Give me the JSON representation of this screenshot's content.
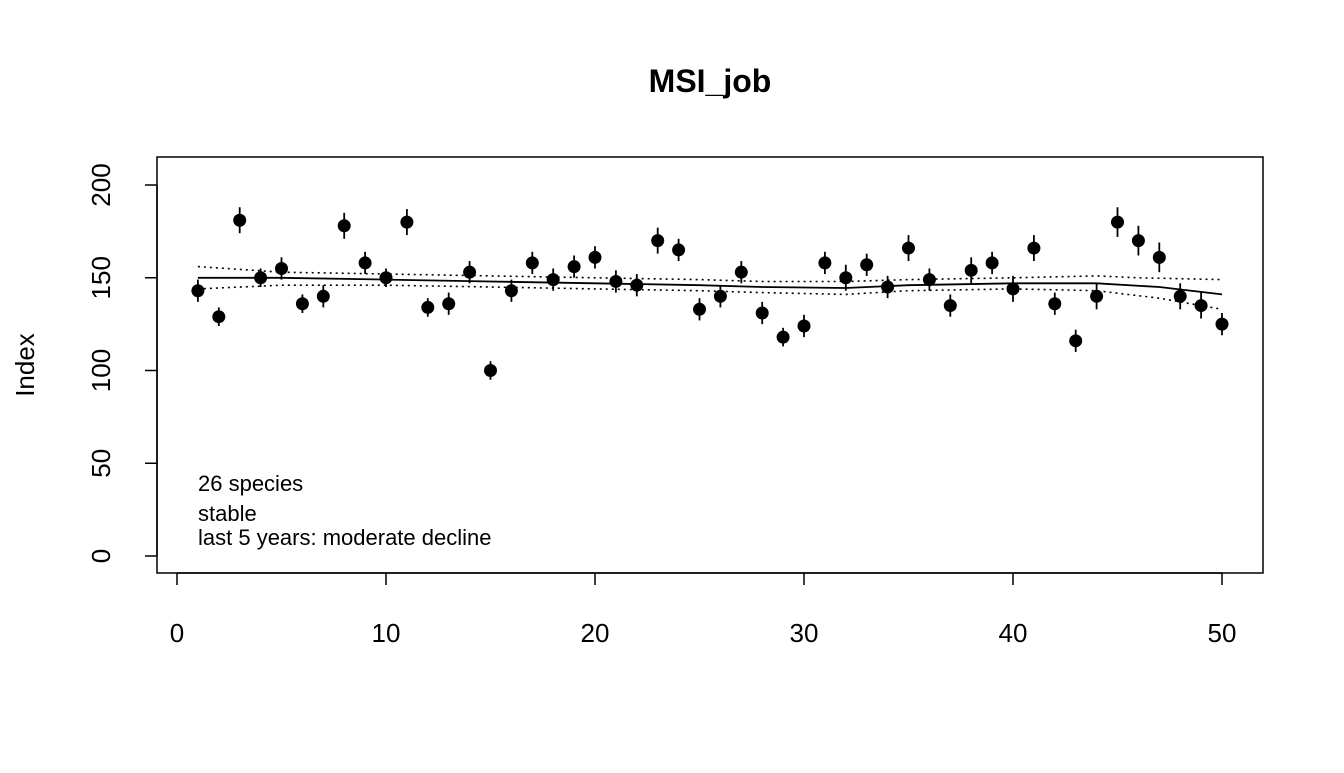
{
  "chart_data": {
    "type": "scatter",
    "title": "MSI_job",
    "xlabel": "",
    "ylabel": "Index",
    "xlim": [
      0,
      50
    ],
    "ylim": [
      0,
      200
    ],
    "x_ticks": [
      "0",
      "10",
      "20",
      "30",
      "40",
      "50"
    ],
    "y_ticks": [
      "0",
      "50",
      "100",
      "150",
      "200"
    ],
    "annotations": [
      "26 species",
      "stable",
      "last 5 years: moderate decline"
    ],
    "grid": false,
    "legend": "none",
    "series": [
      {
        "values": [
          [
            1,
            143
          ],
          [
            2,
            129
          ],
          [
            3,
            181
          ],
          [
            4,
            150
          ],
          [
            5,
            155
          ],
          [
            6,
            136
          ],
          [
            7,
            140
          ],
          [
            8,
            178
          ],
          [
            9,
            158
          ],
          [
            10,
            150
          ],
          [
            11,
            180
          ],
          [
            12,
            134
          ],
          [
            13,
            136
          ],
          [
            14,
            153
          ],
          [
            15,
            100
          ],
          [
            16,
            143
          ],
          [
            17,
            158
          ],
          [
            18,
            149
          ],
          [
            19,
            156
          ],
          [
            20,
            161
          ],
          [
            21,
            148
          ],
          [
            22,
            146
          ],
          [
            23,
            170
          ],
          [
            24,
            165
          ],
          [
            25,
            133
          ],
          [
            26,
            140
          ],
          [
            27,
            153
          ],
          [
            28,
            131
          ],
          [
            29,
            118
          ],
          [
            30,
            124
          ],
          [
            31,
            158
          ],
          [
            32,
            150
          ],
          [
            33,
            157
          ],
          [
            34,
            145
          ],
          [
            35,
            166
          ],
          [
            36,
            149
          ],
          [
            37,
            135
          ],
          [
            38,
            154
          ],
          [
            39,
            158
          ],
          [
            40,
            144
          ],
          [
            41,
            166
          ],
          [
            42,
            136
          ],
          [
            43,
            116
          ],
          [
            44,
            140
          ],
          [
            45,
            180
          ],
          [
            46,
            170
          ],
          [
            47,
            161
          ],
          [
            48,
            140
          ],
          [
            49,
            135
          ],
          [
            50,
            125
          ]
        ],
        "error": [
          6,
          5,
          7,
          5,
          6,
          5,
          6,
          7,
          6,
          5,
          7,
          5,
          6,
          6,
          5,
          6,
          6,
          6,
          6,
          6,
          6,
          6,
          7,
          6,
          6,
          6,
          6,
          6,
          5,
          6,
          6,
          7,
          6,
          6,
          7,
          6,
          6,
          7,
          6,
          7,
          7,
          6,
          6,
          7,
          8,
          8,
          8,
          7,
          7,
          6
        ],
        "color": "#000000"
      },
      {
        "values": [
          [
            1,
            150
          ],
          [
            5,
            150
          ],
          [
            10,
            149
          ],
          [
            15,
            148
          ],
          [
            20,
            147
          ],
          [
            25,
            146
          ],
          [
            28,
            145
          ],
          [
            32,
            144.5
          ],
          [
            35,
            146
          ],
          [
            40,
            147
          ],
          [
            44,
            147
          ],
          [
            47,
            145
          ],
          [
            50,
            141
          ]
        ],
        "style": "solid",
        "color": "#000000"
      },
      {
        "values": [
          [
            1,
            156
          ],
          [
            5,
            153
          ],
          [
            10,
            152
          ],
          [
            15,
            151
          ],
          [
            20,
            150
          ],
          [
            25,
            149
          ],
          [
            28,
            148
          ],
          [
            32,
            148
          ],
          [
            35,
            149
          ],
          [
            40,
            150
          ],
          [
            44,
            151
          ],
          [
            46,
            150
          ],
          [
            50,
            149
          ]
        ],
        "style": "dotted",
        "color": "#000000"
      },
      {
        "values": [
          [
            1,
            144
          ],
          [
            5,
            146
          ],
          [
            10,
            146
          ],
          [
            15,
            145
          ],
          [
            20,
            144
          ],
          [
            25,
            143
          ],
          [
            28,
            142
          ],
          [
            32,
            141
          ],
          [
            35,
            143
          ],
          [
            40,
            144
          ],
          [
            44,
            143
          ],
          [
            47,
            139
          ],
          [
            50,
            133
          ]
        ],
        "style": "dotted",
        "color": "#000000"
      }
    ]
  }
}
